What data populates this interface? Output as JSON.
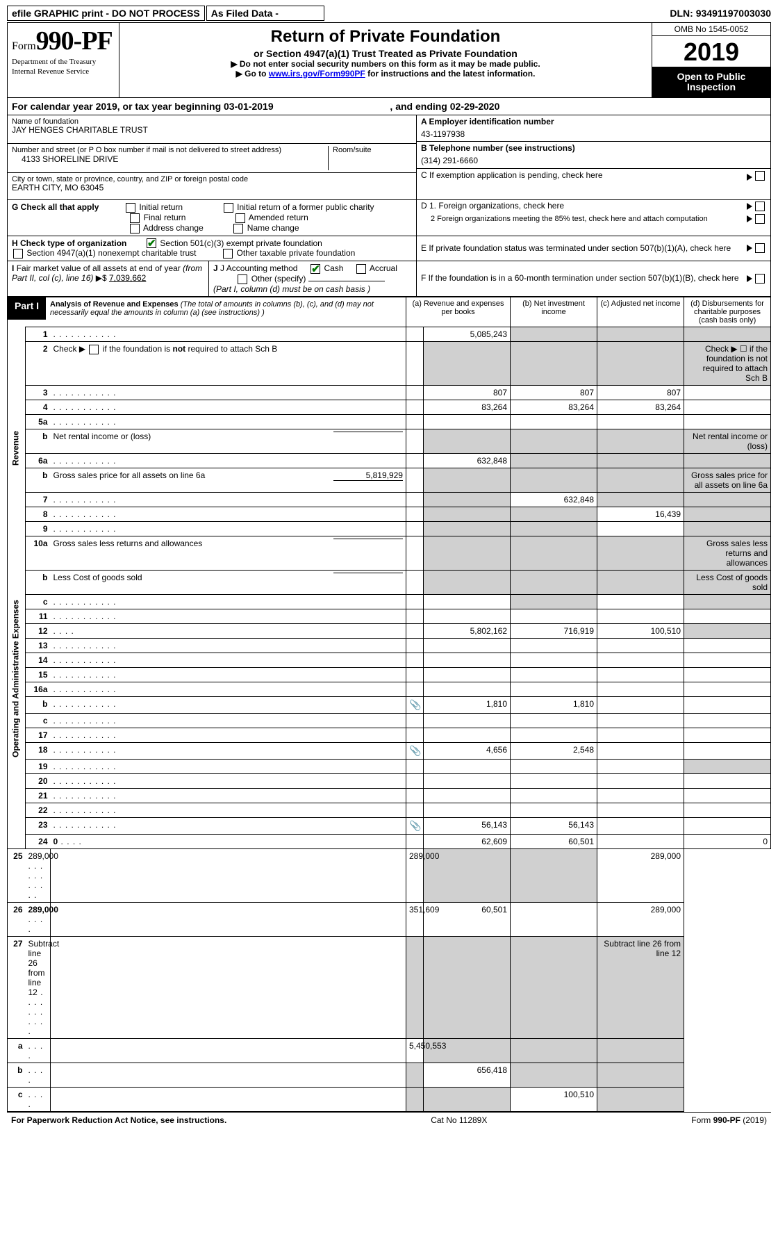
{
  "topbar": {
    "efile": "efile GRAPHIC print - DO NOT PROCESS",
    "asfiled": "As Filed Data -",
    "dln_label": "DLN:",
    "dln": "93491197003030"
  },
  "header": {
    "form_prefix": "Form",
    "form_number": "990-PF",
    "dept1": "Department of the Treasury",
    "dept2": "Internal Revenue Service",
    "title": "Return of Private Foundation",
    "subtitle": "or Section 4947(a)(1) Trust Treated as Private Foundation",
    "note1": "▶ Do not enter social security numbers on this form as it may be made public.",
    "note2_pre": "▶ Go to ",
    "note2_link": "www.irs.gov/Form990PF",
    "note2_post": " for instructions and the latest information.",
    "omb": "OMB No  1545-0052",
    "year": "2019",
    "inspect1": "Open to Public",
    "inspect2": "Inspection"
  },
  "calrow": {
    "pre": "For calendar year 2019, or tax year beginning ",
    "begin": "03-01-2019",
    "mid": ", and ending ",
    "end": "02-29-2020"
  },
  "info": {
    "name_lbl": "Name of foundation",
    "name_val": "JAY HENGES CHARITABLE TRUST",
    "addr_lbl": "Number and street (or P O  box number if mail is not delivered to street address)",
    "room_lbl": "Room/suite",
    "addr_val": "4133 SHORELINE DRIVE",
    "city_lbl": "City or town, state or province, country, and ZIP or foreign postal code",
    "city_val": "EARTH CITY, MO  63045",
    "a_lbl": "A Employer identification number",
    "a_val": "43-1197938",
    "b_lbl": "B Telephone number (see instructions)",
    "b_val": "(314) 291-6660",
    "c_lbl": "C  If exemption application is pending, check here",
    "g_lbl": "G Check all that apply",
    "g_opts": [
      "Initial return",
      "Initial return of a former public charity",
      "Final return",
      "Amended return",
      "Address change",
      "Name change"
    ],
    "d1_lbl": "D 1. Foreign organizations, check here",
    "d2_lbl": "2  Foreign organizations meeting the 85% test, check here and attach computation",
    "e_lbl": "E  If private foundation status was terminated under section 507(b)(1)(A), check here",
    "h_lbl": "H Check type of organization",
    "h_opt1": "Section 501(c)(3) exempt private foundation",
    "h_opt2": "Section 4947(a)(1) nonexempt charitable trust",
    "h_opt3": "Other taxable private foundation",
    "i_lbl": "I Fair market value of all assets at end of year (from Part II, col  (c), line 16) ▶$ ",
    "i_val": "7,039,662",
    "j_lbl": "J Accounting method",
    "j_cash": "Cash",
    "j_accrual": "Accrual",
    "j_other": "Other (specify)",
    "j_note": "(Part I, column (d) must be on cash basis )",
    "f_lbl": "F  If the foundation is in a 60-month termination under section 507(b)(1)(B), check here"
  },
  "part1": {
    "label": "Part I",
    "title": "Analysis of Revenue and Expenses",
    "titlenote": " (The total of amounts in columns (b), (c), and (d) may not necessarily equal the amounts in column (a) (see instructions) )",
    "cols": {
      "a": "(a)  Revenue and expenses per books",
      "b": "(b)  Net investment income",
      "c": "(c)  Adjusted net income",
      "d": "(d)  Disbursements for charitable purposes (cash basis only)"
    },
    "side_rev": "Revenue",
    "side_exp": "Operating and Administrative Expenses"
  },
  "rows": [
    {
      "n": "1",
      "d": "",
      "a": "5,085,243",
      "b": "",
      "c": "",
      "grey": [
        "b",
        "c",
        "d"
      ]
    },
    {
      "n": "2",
      "d": "Check ▶ ☐ if the foundation is not required to attach Sch  B",
      "grey": [
        "a",
        "b",
        "c",
        "d"
      ]
    },
    {
      "n": "3",
      "d": "",
      "a": "807",
      "b": "807",
      "c": "807"
    },
    {
      "n": "4",
      "d": "",
      "a": "83,264",
      "b": "83,264",
      "c": "83,264"
    },
    {
      "n": "5a",
      "d": "",
      "a": "",
      "b": "",
      "c": ""
    },
    {
      "n": "b",
      "d": "Net rental income or (loss)",
      "inline": "",
      "grey": [
        "a",
        "b",
        "c",
        "d"
      ]
    },
    {
      "n": "6a",
      "d": "",
      "a": "632,848",
      "b": "",
      "c": "",
      "grey": [
        "b",
        "c",
        "d"
      ]
    },
    {
      "n": "b",
      "d": "Gross sales price for all assets on line 6a",
      "inline": "5,819,929",
      "grey": [
        "a",
        "b",
        "c",
        "d"
      ]
    },
    {
      "n": "7",
      "d": "",
      "a": "",
      "b": "632,848",
      "c": "",
      "grey": [
        "a",
        "c",
        "d"
      ]
    },
    {
      "n": "8",
      "d": "",
      "a": "",
      "b": "",
      "c": "16,439",
      "grey": [
        "a",
        "b",
        "d"
      ]
    },
    {
      "n": "9",
      "d": "",
      "a": "",
      "b": "",
      "c": "",
      "grey": [
        "a",
        "b",
        "d"
      ]
    },
    {
      "n": "10a",
      "d": "Gross sales less returns and allowances",
      "inline": "",
      "grey": [
        "a",
        "b",
        "c",
        "d"
      ]
    },
    {
      "n": "b",
      "d": "Less  Cost of goods sold",
      "inline": "",
      "grey": [
        "a",
        "b",
        "c",
        "d"
      ]
    },
    {
      "n": "c",
      "d": "",
      "a": "",
      "b": "",
      "c": "",
      "grey": [
        "b",
        "d"
      ]
    },
    {
      "n": "11",
      "d": "",
      "a": "",
      "b": "",
      "c": ""
    },
    {
      "n": "12",
      "d": "",
      "a": "5,802,162",
      "b": "716,919",
      "c": "100,510",
      "bold": true,
      "grey": [
        "d"
      ]
    },
    {
      "n": "13",
      "d": "",
      "a": "",
      "b": "",
      "c": ""
    },
    {
      "n": "14",
      "d": "",
      "a": "",
      "b": "",
      "c": ""
    },
    {
      "n": "15",
      "d": "",
      "a": "",
      "b": "",
      "c": ""
    },
    {
      "n": "16a",
      "d": "",
      "a": "",
      "b": "",
      "c": ""
    },
    {
      "n": "b",
      "d": "",
      "icon": true,
      "a": "1,810",
      "b": "1,810",
      "c": ""
    },
    {
      "n": "c",
      "d": "",
      "a": "",
      "b": "",
      "c": ""
    },
    {
      "n": "17",
      "d": "",
      "a": "",
      "b": "",
      "c": ""
    },
    {
      "n": "18",
      "d": "",
      "icon": true,
      "a": "4,656",
      "b": "2,548",
      "c": ""
    },
    {
      "n": "19",
      "d": "",
      "a": "",
      "b": "",
      "c": "",
      "grey": [
        "d"
      ]
    },
    {
      "n": "20",
      "d": "",
      "a": "",
      "b": "",
      "c": ""
    },
    {
      "n": "21",
      "d": "",
      "a": "",
      "b": "",
      "c": ""
    },
    {
      "n": "22",
      "d": "",
      "a": "",
      "b": "",
      "c": ""
    },
    {
      "n": "23",
      "d": "",
      "icon": true,
      "a": "56,143",
      "b": "56,143",
      "c": ""
    },
    {
      "n": "24",
      "d": "0",
      "a": "62,609",
      "b": "60,501",
      "c": "",
      "bold": true
    },
    {
      "n": "25",
      "d": "289,000",
      "a": "289,000",
      "b": "",
      "c": "",
      "grey": [
        "b",
        "c"
      ]
    },
    {
      "n": "26",
      "d": "289,000",
      "a": "351,609",
      "b": "60,501",
      "c": "",
      "bold": true
    },
    {
      "n": "27",
      "d": "Subtract line 26 from line 12",
      "grey": [
        "a",
        "b",
        "c",
        "d"
      ]
    },
    {
      "n": "a",
      "d": "",
      "a": "5,450,553",
      "b": "",
      "c": "",
      "bold": true,
      "grey": [
        "b",
        "c",
        "d"
      ]
    },
    {
      "n": "b",
      "d": "",
      "a": "",
      "b": "656,418",
      "c": "",
      "bold": true,
      "grey": [
        "a",
        "c",
        "d"
      ]
    },
    {
      "n": "c",
      "d": "",
      "a": "",
      "b": "",
      "c": "100,510",
      "bold": true,
      "grey": [
        "a",
        "b",
        "d"
      ]
    }
  ],
  "footer": {
    "left": "For Paperwork Reduction Act Notice, see instructions.",
    "mid": "Cat  No  11289X",
    "right_pre": "Form ",
    "right_form": "990-PF",
    "right_post": " (2019)"
  }
}
